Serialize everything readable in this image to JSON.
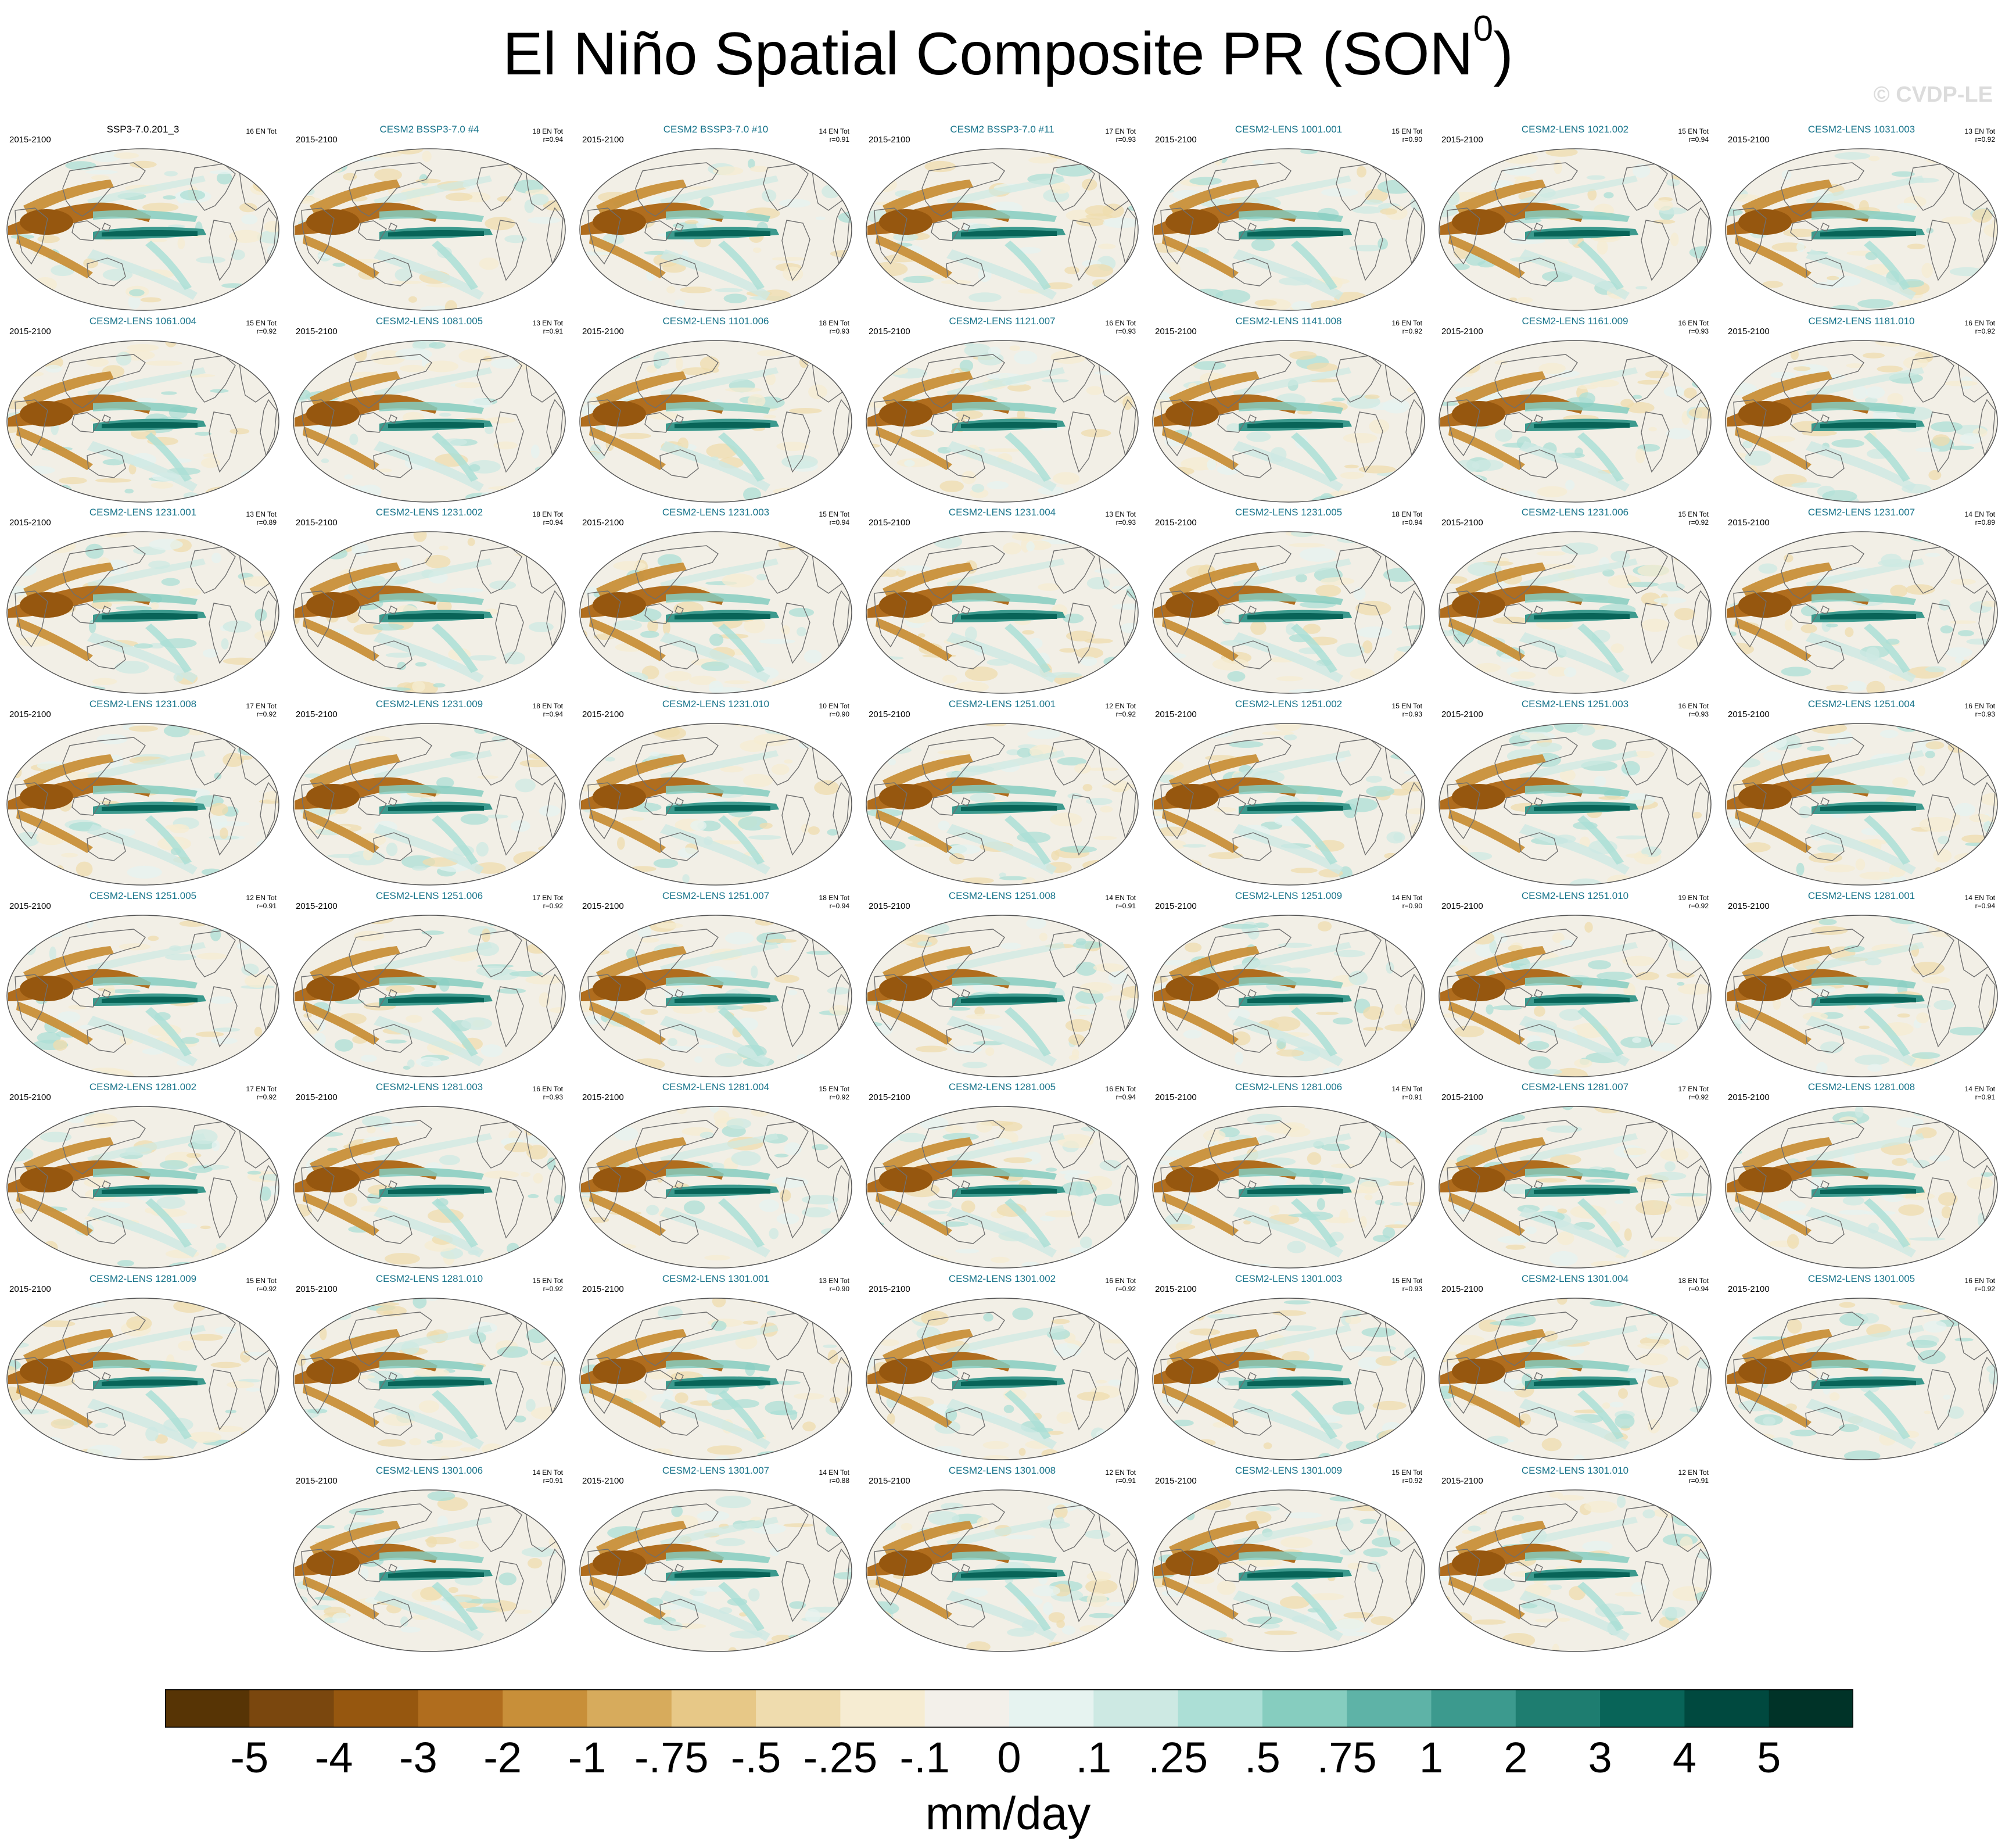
{
  "title": {
    "main": "El Niño Spatial Composite PR (SON",
    "superscript": "0",
    "close": ")"
  },
  "copyright": "© CVDP-LE",
  "colors": {
    "model_label": "#16738a",
    "ocean_background": "#f2efe6",
    "coastline": "#6f6f6f"
  },
  "colormap": [
    "#573405",
    "#7a470e",
    "#96570f",
    "#b06d1e",
    "#c88f39",
    "#d7ab5c",
    "#e7c887",
    "#efdcae",
    "#f6ecd2",
    "#f3f0ea",
    "#e6f3f0",
    "#cde9e3",
    "#acdfd6",
    "#86cdbf",
    "#5eb3a7",
    "#3c9a8e",
    "#1e7d70",
    "#086458",
    "#00493f",
    "#003328"
  ],
  "colorbar": {
    "labels": [
      "-5",
      "-4",
      "-3",
      "-2",
      "-1",
      "-.75",
      "-.5",
      "-.25",
      "-.1",
      "0",
      ".1",
      ".25",
      ".5",
      ".75",
      "1",
      "2",
      "3",
      "4",
      "5"
    ],
    "units": "mm/day"
  },
  "panels": [
    {
      "name": "SSP3-7.0.201_3",
      "period": "2015-2100",
      "count": "16 EN Tot",
      "r": ""
    },
    {
      "name": "CESM2 BSSP3-7.0 #4",
      "period": "2015-2100",
      "count": "18 EN Tot",
      "r": "r=0.94"
    },
    {
      "name": "CESM2 BSSP3-7.0 #10",
      "period": "2015-2100",
      "count": "14 EN Tot",
      "r": "r=0.91"
    },
    {
      "name": "CESM2 BSSP3-7.0 #11",
      "period": "2015-2100",
      "count": "17 EN Tot",
      "r": "r=0.93"
    },
    {
      "name": "CESM2-LENS 1001.001",
      "period": "2015-2100",
      "count": "15 EN Tot",
      "r": "r=0.90"
    },
    {
      "name": "CESM2-LENS 1021.002",
      "period": "2015-2100",
      "count": "15 EN Tot",
      "r": "r=0.94"
    },
    {
      "name": "CESM2-LENS 1031.003",
      "period": "2015-2100",
      "count": "13 EN Tot",
      "r": "r=0.92"
    },
    {
      "name": "CESM2-LENS 1061.004",
      "period": "2015-2100",
      "count": "15 EN Tot",
      "r": "r=0.92"
    },
    {
      "name": "CESM2-LENS 1081.005",
      "period": "2015-2100",
      "count": "13 EN Tot",
      "r": "r=0.91"
    },
    {
      "name": "CESM2-LENS 1101.006",
      "period": "2015-2100",
      "count": "18 EN Tot",
      "r": "r=0.93"
    },
    {
      "name": "CESM2-LENS 1121.007",
      "period": "2015-2100",
      "count": "16 EN Tot",
      "r": "r=0.93"
    },
    {
      "name": "CESM2-LENS 1141.008",
      "period": "2015-2100",
      "count": "16 EN Tot",
      "r": "r=0.92"
    },
    {
      "name": "CESM2-LENS 1161.009",
      "period": "2015-2100",
      "count": "16 EN Tot",
      "r": "r=0.93"
    },
    {
      "name": "CESM2-LENS 1181.010",
      "period": "2015-2100",
      "count": "16 EN Tot",
      "r": "r=0.92"
    },
    {
      "name": "CESM2-LENS 1231.001",
      "period": "2015-2100",
      "count": "13 EN Tot",
      "r": "r=0.89"
    },
    {
      "name": "CESM2-LENS 1231.002",
      "period": "2015-2100",
      "count": "18 EN Tot",
      "r": "r=0.94"
    },
    {
      "name": "CESM2-LENS 1231.003",
      "period": "2015-2100",
      "count": "15 EN Tot",
      "r": "r=0.94"
    },
    {
      "name": "CESM2-LENS 1231.004",
      "period": "2015-2100",
      "count": "13 EN Tot",
      "r": "r=0.93"
    },
    {
      "name": "CESM2-LENS 1231.005",
      "period": "2015-2100",
      "count": "18 EN Tot",
      "r": "r=0.94"
    },
    {
      "name": "CESM2-LENS 1231.006",
      "period": "2015-2100",
      "count": "15 EN Tot",
      "r": "r=0.92"
    },
    {
      "name": "CESM2-LENS 1231.007",
      "period": "2015-2100",
      "count": "14 EN Tot",
      "r": "r=0.89"
    },
    {
      "name": "CESM2-LENS 1231.008",
      "period": "2015-2100",
      "count": "17 EN Tot",
      "r": "r=0.92"
    },
    {
      "name": "CESM2-LENS 1231.009",
      "period": "2015-2100",
      "count": "18 EN Tot",
      "r": "r=0.94"
    },
    {
      "name": "CESM2-LENS 1231.010",
      "period": "2015-2100",
      "count": "10 EN Tot",
      "r": "r=0.90"
    },
    {
      "name": "CESM2-LENS 1251.001",
      "period": "2015-2100",
      "count": "12 EN Tot",
      "r": "r=0.92"
    },
    {
      "name": "CESM2-LENS 1251.002",
      "period": "2015-2100",
      "count": "15 EN Tot",
      "r": "r=0.93"
    },
    {
      "name": "CESM2-LENS 1251.003",
      "period": "2015-2100",
      "count": "16 EN Tot",
      "r": "r=0.93"
    },
    {
      "name": "CESM2-LENS 1251.004",
      "period": "2015-2100",
      "count": "16 EN Tot",
      "r": "r=0.93"
    },
    {
      "name": "CESM2-LENS 1251.005",
      "period": "2015-2100",
      "count": "12 EN Tot",
      "r": "r=0.91"
    },
    {
      "name": "CESM2-LENS 1251.006",
      "period": "2015-2100",
      "count": "17 EN Tot",
      "r": "r=0.92"
    },
    {
      "name": "CESM2-LENS 1251.007",
      "period": "2015-2100",
      "count": "18 EN Tot",
      "r": "r=0.94"
    },
    {
      "name": "CESM2-LENS 1251.008",
      "period": "2015-2100",
      "count": "14 EN Tot",
      "r": "r=0.91"
    },
    {
      "name": "CESM2-LENS 1251.009",
      "period": "2015-2100",
      "count": "14 EN Tot",
      "r": "r=0.90"
    },
    {
      "name": "CESM2-LENS 1251.010",
      "period": "2015-2100",
      "count": "19 EN Tot",
      "r": "r=0.92"
    },
    {
      "name": "CESM2-LENS 1281.001",
      "period": "2015-2100",
      "count": "14 EN Tot",
      "r": "r=0.94"
    },
    {
      "name": "CESM2-LENS 1281.002",
      "period": "2015-2100",
      "count": "17 EN Tot",
      "r": "r=0.92"
    },
    {
      "name": "CESM2-LENS 1281.003",
      "period": "2015-2100",
      "count": "16 EN Tot",
      "r": "r=0.93"
    },
    {
      "name": "CESM2-LENS 1281.004",
      "period": "2015-2100",
      "count": "15 EN Tot",
      "r": "r=0.92"
    },
    {
      "name": "CESM2-LENS 1281.005",
      "period": "2015-2100",
      "count": "16 EN Tot",
      "r": "r=0.94"
    },
    {
      "name": "CESM2-LENS 1281.006",
      "period": "2015-2100",
      "count": "14 EN Tot",
      "r": "r=0.91"
    },
    {
      "name": "CESM2-LENS 1281.007",
      "period": "2015-2100",
      "count": "17 EN Tot",
      "r": "r=0.92"
    },
    {
      "name": "CESM2-LENS 1281.008",
      "period": "2015-2100",
      "count": "14 EN Tot",
      "r": "r=0.91"
    },
    {
      "name": "CESM2-LENS 1281.009",
      "period": "2015-2100",
      "count": "15 EN Tot",
      "r": "r=0.92"
    },
    {
      "name": "CESM2-LENS 1281.010",
      "period": "2015-2100",
      "count": "15 EN Tot",
      "r": "r=0.92"
    },
    {
      "name": "CESM2-LENS 1301.001",
      "period": "2015-2100",
      "count": "13 EN Tot",
      "r": "r=0.90"
    },
    {
      "name": "CESM2-LENS 1301.002",
      "period": "2015-2100",
      "count": "16 EN Tot",
      "r": "r=0.92"
    },
    {
      "name": "CESM2-LENS 1301.003",
      "period": "2015-2100",
      "count": "15 EN Tot",
      "r": "r=0.93"
    },
    {
      "name": "CESM2-LENS 1301.004",
      "period": "2015-2100",
      "count": "18 EN Tot",
      "r": "r=0.94"
    },
    {
      "name": "CESM2-LENS 1301.005",
      "period": "2015-2100",
      "count": "16 EN Tot",
      "r": "r=0.92"
    },
    {
      "name": "CESM2-LENS 1301.006",
      "period": "2015-2100",
      "count": "14 EN Tot",
      "r": "r=0.91"
    },
    {
      "name": "CESM2-LENS 1301.007",
      "period": "2015-2100",
      "count": "14 EN Tot",
      "r": "r=0.88"
    },
    {
      "name": "CESM2-LENS 1301.008",
      "period": "2015-2100",
      "count": "12 EN Tot",
      "r": "r=0.91"
    },
    {
      "name": "CESM2-LENS 1301.009",
      "period": "2015-2100",
      "count": "15 EN Tot",
      "r": "r=0.92"
    },
    {
      "name": "CESM2-LENS 1301.010",
      "period": "2015-2100",
      "count": "12 EN Tot",
      "r": "r=0.91"
    }
  ]
}
